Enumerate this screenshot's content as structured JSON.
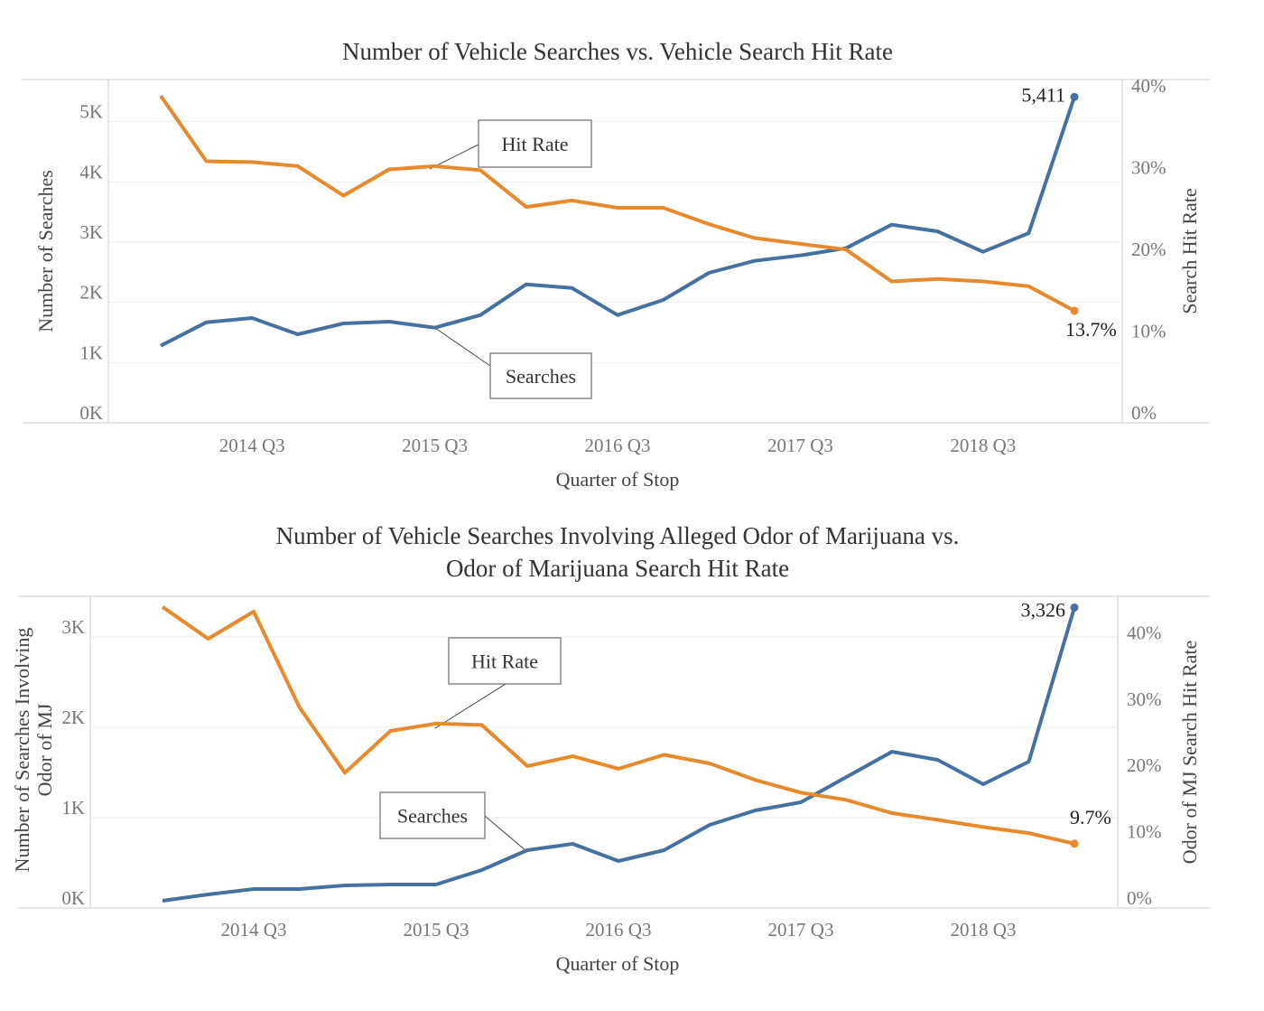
{
  "chart_data": [
    {
      "type": "line",
      "title": "Number of Vehicle Searches vs. Vehicle Search Hit Rate",
      "xlabel": "Quarter of Stop",
      "ylabel": "Number of Searches",
      "y2label": "Search Hit Rate",
      "x": [
        "2014 Q1",
        "2014 Q2",
        "2014 Q3",
        "2014 Q4",
        "2015 Q1",
        "2015 Q2",
        "2015 Q3",
        "2015 Q4",
        "2016 Q1",
        "2016 Q2",
        "2016 Q3",
        "2016 Q4",
        "2017 Q1",
        "2017 Q2",
        "2017 Q3",
        "2017 Q4",
        "2018 Q1",
        "2018 Q2",
        "2018 Q3",
        "2018 Q4",
        "2019 Q1"
      ],
      "xtick_labels": [
        "2014 Q3",
        "2015 Q3",
        "2016 Q3",
        "2017 Q3",
        "2018 Q3"
      ],
      "ytick_labels": [
        "0K",
        "1K",
        "2K",
        "3K",
        "4K",
        "5K"
      ],
      "y2tick_labels": [
        "0%",
        "10%",
        "20%",
        "30%",
        "40%"
      ],
      "ylim": [
        0,
        5.7
      ],
      "y2lim": [
        0,
        42
      ],
      "grid": true,
      "series": [
        {
          "name": "Searches",
          "axis": "left",
          "unit": "thousands",
          "color": "#44719f",
          "values": [
            1.28,
            1.67,
            1.74,
            1.47,
            1.65,
            1.68,
            1.58,
            1.79,
            2.3,
            2.24,
            1.79,
            2.04,
            2.49,
            2.69,
            2.78,
            2.9,
            3.29,
            3.18,
            2.84,
            3.15,
            5.411
          ],
          "end_label": "5,411"
        },
        {
          "name": "Hit Rate",
          "axis": "right",
          "unit": "percent",
          "color": "#e8892b",
          "values": [
            40.0,
            32.0,
            31.9,
            31.4,
            27.8,
            31.0,
            31.4,
            30.9,
            26.4,
            27.2,
            26.3,
            26.3,
            24.3,
            22.6,
            21.9,
            21.2,
            17.3,
            17.6,
            17.3,
            16.7,
            13.7
          ],
          "end_label": "13.7%"
        }
      ]
    },
    {
      "type": "line",
      "title": "Number of Vehicle Searches Involving Alleged Odor of Marijuana vs.",
      "title_line2": "Odor of Marijuana Search Hit Rate",
      "xlabel": "Quarter of Stop",
      "ylabel": "Number of Searches Involving",
      "ylabel_line2": "Odor of MJ",
      "y2label": "Odor of MJ Search Hit Rate",
      "x": [
        "2014 Q1",
        "2014 Q2",
        "2014 Q3",
        "2014 Q4",
        "2015 Q1",
        "2015 Q2",
        "2015 Q3",
        "2015 Q4",
        "2016 Q1",
        "2016 Q2",
        "2016 Q3",
        "2016 Q4",
        "2017 Q1",
        "2017 Q2",
        "2017 Q3",
        "2017 Q4",
        "2018 Q1",
        "2018 Q2",
        "2018 Q3",
        "2018 Q4",
        "2019 Q1"
      ],
      "xtick_labels": [
        "2014 Q3",
        "2015 Q3",
        "2016 Q3",
        "2017 Q3",
        "2018 Q3"
      ],
      "ytick_labels": [
        "0K",
        "1K",
        "2K",
        "3K"
      ],
      "y2tick_labels": [
        "0%",
        "10%",
        "20%",
        "30%",
        "40%"
      ],
      "ylim": [
        0,
        3.45
      ],
      "y2lim": [
        0,
        47
      ],
      "grid": true,
      "series": [
        {
          "name": "Searches",
          "axis": "left",
          "unit": "thousands",
          "color": "#44719f",
          "values": [
            0.08,
            0.15,
            0.21,
            0.21,
            0.25,
            0.26,
            0.26,
            0.42,
            0.64,
            0.71,
            0.52,
            0.64,
            0.92,
            1.08,
            1.17,
            1.45,
            1.73,
            1.64,
            1.37,
            1.62,
            3.326
          ],
          "end_label": "3,326"
        },
        {
          "name": "Hit Rate",
          "axis": "right",
          "unit": "percent",
          "color": "#e8892b",
          "values": [
            45.4,
            40.6,
            44.7,
            30.3,
            20.4,
            26.7,
            27.8,
            27.6,
            21.4,
            22.9,
            21.0,
            23.1,
            21.8,
            19.3,
            17.4,
            16.3,
            14.3,
            13.3,
            12.2,
            11.3,
            9.7
          ],
          "end_label": "9.7%"
        }
      ]
    }
  ]
}
